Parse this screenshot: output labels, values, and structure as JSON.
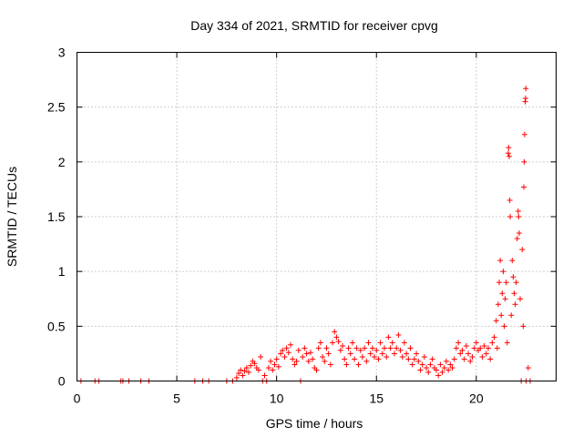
{
  "chart_data": {
    "type": "scatter",
    "title": "Day 334 of 2021, SRMTID for receiver cpvg",
    "xlabel": "GPS time / hours",
    "ylabel": "SRMTID / TECUs",
    "xlim": [
      0,
      24
    ],
    "ylim": [
      0,
      3
    ],
    "xticks": [
      0,
      5,
      10,
      15,
      20
    ],
    "yticks": [
      0,
      0.5,
      1,
      1.5,
      2,
      2.5,
      3
    ],
    "xtick_labels": [
      "0",
      "5",
      "10",
      "15",
      "20"
    ],
    "ytick_labels": [
      "0",
      "0.5",
      "1",
      "1.5",
      "2",
      "2.5",
      "3"
    ],
    "grid": true,
    "marker": "+",
    "color": "#ff0000",
    "series": [
      {
        "name": "SRMTID",
        "points": [
          [
            0.2,
            0.0
          ],
          [
            0.9,
            0.0
          ],
          [
            1.1,
            0.0
          ],
          [
            2.2,
            0.0
          ],
          [
            2.3,
            0.0
          ],
          [
            2.6,
            0.0
          ],
          [
            3.2,
            0.0
          ],
          [
            3.6,
            0.0
          ],
          [
            5.9,
            0.0
          ],
          [
            6.3,
            0.0
          ],
          [
            6.6,
            0.0
          ],
          [
            7.5,
            0.0
          ],
          [
            7.8,
            0.0
          ],
          [
            8.0,
            0.03
          ],
          [
            8.1,
            0.07
          ],
          [
            8.2,
            0.1
          ],
          [
            8.3,
            0.05
          ],
          [
            8.4,
            0.09
          ],
          [
            8.5,
            0.12
          ],
          [
            8.6,
            0.08
          ],
          [
            8.7,
            0.14
          ],
          [
            8.8,
            0.18
          ],
          [
            8.9,
            0.16
          ],
          [
            9.0,
            0.12
          ],
          [
            9.1,
            0.1
          ],
          [
            9.2,
            0.22
          ],
          [
            9.3,
            0.0
          ],
          [
            9.4,
            0.05
          ],
          [
            9.5,
            0.0
          ],
          [
            9.6,
            0.12
          ],
          [
            9.7,
            0.18
          ],
          [
            9.8,
            0.1
          ],
          [
            9.9,
            0.15
          ],
          [
            10.0,
            0.2
          ],
          [
            10.1,
            0.13
          ],
          [
            10.2,
            0.25
          ],
          [
            10.3,
            0.28
          ],
          [
            10.4,
            0.22
          ],
          [
            10.5,
            0.3
          ],
          [
            10.6,
            0.26
          ],
          [
            10.7,
            0.33
          ],
          [
            10.8,
            0.2
          ],
          [
            10.9,
            0.15
          ],
          [
            11.0,
            0.18
          ],
          [
            11.1,
            0.28
          ],
          [
            11.2,
            0.0
          ],
          [
            11.3,
            0.22
          ],
          [
            11.4,
            0.3
          ],
          [
            11.5,
            0.25
          ],
          [
            11.6,
            0.18
          ],
          [
            11.7,
            0.26
          ],
          [
            11.8,
            0.2
          ],
          [
            11.9,
            0.12
          ],
          [
            12.0,
            0.1
          ],
          [
            12.1,
            0.3
          ],
          [
            12.2,
            0.35
          ],
          [
            12.3,
            0.22
          ],
          [
            12.4,
            0.18
          ],
          [
            12.5,
            0.3
          ],
          [
            12.6,
            0.25
          ],
          [
            12.7,
            0.15
          ],
          [
            12.8,
            0.35
          ],
          [
            12.9,
            0.45
          ],
          [
            13.0,
            0.4
          ],
          [
            13.1,
            0.36
          ],
          [
            13.2,
            0.28
          ],
          [
            13.3,
            0.32
          ],
          [
            13.4,
            0.2
          ],
          [
            13.5,
            0.15
          ],
          [
            13.6,
            0.3
          ],
          [
            13.7,
            0.25
          ],
          [
            13.8,
            0.35
          ],
          [
            13.9,
            0.2
          ],
          [
            14.0,
            0.3
          ],
          [
            14.1,
            0.15
          ],
          [
            14.2,
            0.28
          ],
          [
            14.3,
            0.22
          ],
          [
            14.4,
            0.3
          ],
          [
            14.5,
            0.18
          ],
          [
            14.6,
            0.35
          ],
          [
            14.7,
            0.25
          ],
          [
            14.8,
            0.3
          ],
          [
            14.9,
            0.22
          ],
          [
            15.0,
            0.28
          ],
          [
            15.1,
            0.2
          ],
          [
            15.2,
            0.35
          ],
          [
            15.3,
            0.25
          ],
          [
            15.4,
            0.3
          ],
          [
            15.5,
            0.22
          ],
          [
            15.6,
            0.4
          ],
          [
            15.7,
            0.3
          ],
          [
            15.8,
            0.35
          ],
          [
            15.9,
            0.25
          ],
          [
            16.0,
            0.3
          ],
          [
            16.1,
            0.42
          ],
          [
            16.2,
            0.28
          ],
          [
            16.3,
            0.22
          ],
          [
            16.4,
            0.35
          ],
          [
            16.5,
            0.25
          ],
          [
            16.6,
            0.2
          ],
          [
            16.7,
            0.3
          ],
          [
            16.8,
            0.15
          ],
          [
            16.9,
            0.2
          ],
          [
            17.0,
            0.25
          ],
          [
            17.1,
            0.18
          ],
          [
            17.2,
            0.1
          ],
          [
            17.3,
            0.15
          ],
          [
            17.4,
            0.22
          ],
          [
            17.5,
            0.12
          ],
          [
            17.6,
            0.08
          ],
          [
            17.7,
            0.15
          ],
          [
            17.8,
            0.2
          ],
          [
            17.9,
            0.12
          ],
          [
            18.0,
            0.1
          ],
          [
            18.1,
            0.05
          ],
          [
            18.2,
            0.15
          ],
          [
            18.3,
            0.08
          ],
          [
            18.4,
            0.12
          ],
          [
            18.5,
            0.18
          ],
          [
            18.6,
            0.1
          ],
          [
            18.7,
            0.15
          ],
          [
            18.8,
            0.12
          ],
          [
            18.9,
            0.2
          ],
          [
            19.0,
            0.3
          ],
          [
            19.1,
            0.35
          ],
          [
            19.2,
            0.25
          ],
          [
            19.3,
            0.28
          ],
          [
            19.4,
            0.2
          ],
          [
            19.5,
            0.32
          ],
          [
            19.6,
            0.25
          ],
          [
            19.7,
            0.18
          ],
          [
            19.8,
            0.22
          ],
          [
            19.9,
            0.3
          ],
          [
            20.0,
            0.35
          ],
          [
            20.1,
            0.28
          ],
          [
            20.2,
            0.3
          ],
          [
            20.3,
            0.22
          ],
          [
            20.4,
            0.32
          ],
          [
            20.5,
            0.25
          ],
          [
            20.6,
            0.3
          ],
          [
            20.7,
            0.2
          ],
          [
            20.8,
            0.35
          ],
          [
            20.9,
            0.4
          ],
          [
            21.0,
            0.55
          ],
          [
            21.05,
            0.3
          ],
          [
            21.1,
            0.7
          ],
          [
            21.15,
            0.9
          ],
          [
            21.2,
            1.1
          ],
          [
            21.25,
            0.6
          ],
          [
            21.3,
            0.8
          ],
          [
            21.35,
            1.0
          ],
          [
            21.4,
            0.5
          ],
          [
            21.45,
            0.75
          ],
          [
            21.5,
            0.9
          ],
          [
            21.55,
            0.35
          ],
          [
            21.6,
            2.08
          ],
          [
            21.62,
            2.13
          ],
          [
            21.65,
            2.05
          ],
          [
            21.68,
            1.65
          ],
          [
            21.7,
            1.5
          ],
          [
            21.75,
            0.6
          ],
          [
            21.8,
            1.1
          ],
          [
            21.85,
            0.95
          ],
          [
            21.9,
            0.8
          ],
          [
            21.95,
            0.7
          ],
          [
            22.0,
            0.9
          ],
          [
            22.05,
            1.3
          ],
          [
            22.1,
            1.55
          ],
          [
            22.12,
            1.5
          ],
          [
            22.15,
            1.35
          ],
          [
            22.2,
            0.75
          ],
          [
            22.25,
            0.0
          ],
          [
            22.3,
            1.2
          ],
          [
            22.35,
            0.5
          ],
          [
            22.38,
            1.77
          ],
          [
            22.4,
            2.0
          ],
          [
            22.42,
            2.25
          ],
          [
            22.45,
            2.55
          ],
          [
            22.47,
            2.58
          ],
          [
            22.48,
            2.67
          ],
          [
            22.5,
            0.0
          ],
          [
            22.6,
            0.12
          ],
          [
            22.7,
            0.0
          ]
        ]
      }
    ]
  }
}
